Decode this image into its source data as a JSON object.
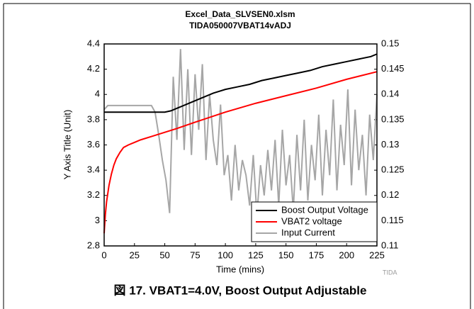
{
  "chart_data": {
    "type": "line",
    "title": "Excel_Data_SLVSEN0.xlsm",
    "subtitle": "TIDA050007VBAT14vADJ",
    "x_label": "Time (mins)",
    "y_label": "Y Axis Title (Unit)",
    "watermark": "TIDA",
    "caption": "図 17. VBAT1=4.0V, Boost Output Adjustable",
    "xlim": [
      0,
      225
    ],
    "xticks": [
      0,
      25,
      50,
      75,
      100,
      125,
      150,
      175,
      200,
      225
    ],
    "ylim": [
      2.8,
      4.4
    ],
    "yticks": [
      2.8,
      3,
      3.2,
      3.4,
      3.6,
      3.8,
      4,
      4.2,
      4.4
    ],
    "y2lim": [
      0.11,
      0.15
    ],
    "y2ticks": [
      0.11,
      0.115,
      0.12,
      0.125,
      0.13,
      0.135,
      0.14,
      0.145,
      0.15
    ],
    "grid": false,
    "legend": "lower right",
    "series": [
      {
        "name": "Boost Output Voltage",
        "color": "#000000",
        "x": [
          0,
          10,
          20,
          30,
          40,
          50,
          55,
          60,
          70,
          80,
          90,
          100,
          110,
          120,
          130,
          140,
          150,
          160,
          170,
          180,
          190,
          200,
          210,
          220,
          225
        ],
        "values": [
          3.86,
          3.86,
          3.86,
          3.86,
          3.86,
          3.86,
          3.87,
          3.89,
          3.93,
          3.97,
          4.01,
          4.04,
          4.06,
          4.08,
          4.11,
          4.13,
          4.15,
          4.17,
          4.19,
          4.22,
          4.24,
          4.26,
          4.28,
          4.3,
          4.32
        ]
      },
      {
        "name": "VBAT2 voltage",
        "color": "#ff0000",
        "x": [
          0,
          1,
          2,
          4,
          6,
          8,
          10,
          13,
          16,
          20,
          25,
          30,
          40,
          50,
          60,
          75,
          100,
          125,
          150,
          175,
          200,
          225
        ],
        "values": [
          2.9,
          3.05,
          3.15,
          3.28,
          3.37,
          3.44,
          3.49,
          3.54,
          3.58,
          3.6,
          3.62,
          3.64,
          3.67,
          3.7,
          3.73,
          3.78,
          3.86,
          3.93,
          3.99,
          4.05,
          4.12,
          4.18
        ]
      },
      {
        "name": "Input Current",
        "color": "#a6a6a6",
        "axis": "y2",
        "x": [
          0,
          3,
          6,
          9,
          12,
          15,
          18,
          21,
          24,
          27,
          30,
          33,
          36,
          39,
          42,
          45,
          48,
          51,
          54,
          57,
          60,
          63,
          66,
          69,
          72,
          75,
          78,
          81,
          84,
          87,
          90,
          93,
          96,
          99,
          102,
          105,
          108,
          111,
          114,
          117,
          120,
          123,
          126,
          129,
          132,
          135,
          138,
          141,
          144,
          147,
          150,
          153,
          156,
          159,
          162,
          165,
          168,
          171,
          174,
          177,
          180,
          183,
          186,
          189,
          192,
          195,
          198,
          201,
          204,
          207,
          210,
          213,
          216,
          219,
          222,
          225
        ],
        "values": [
          0.137,
          0.1378,
          0.1378,
          0.1378,
          0.1378,
          0.1378,
          0.1378,
          0.1378,
          0.1378,
          0.1378,
          0.1378,
          0.1378,
          0.1378,
          0.1378,
          0.1365,
          0.132,
          0.127,
          0.123,
          0.1165,
          0.1435,
          0.131,
          0.149,
          0.129,
          0.145,
          0.128,
          0.144,
          0.133,
          0.146,
          0.127,
          0.14,
          0.131,
          0.126,
          0.138,
          0.124,
          0.128,
          0.119,
          0.13,
          0.121,
          0.127,
          0.124,
          0.118,
          0.128,
          0.116,
          0.126,
          0.12,
          0.129,
          0.121,
          0.131,
          0.118,
          0.133,
          0.122,
          0.128,
          0.117,
          0.132,
          0.121,
          0.135,
          0.119,
          0.13,
          0.123,
          0.136,
          0.12,
          0.133,
          0.124,
          0.139,
          0.121,
          0.134,
          0.126,
          0.141,
          0.122,
          0.137,
          0.125,
          0.132,
          0.12,
          0.136,
          0.127,
          0.14
        ]
      }
    ]
  }
}
